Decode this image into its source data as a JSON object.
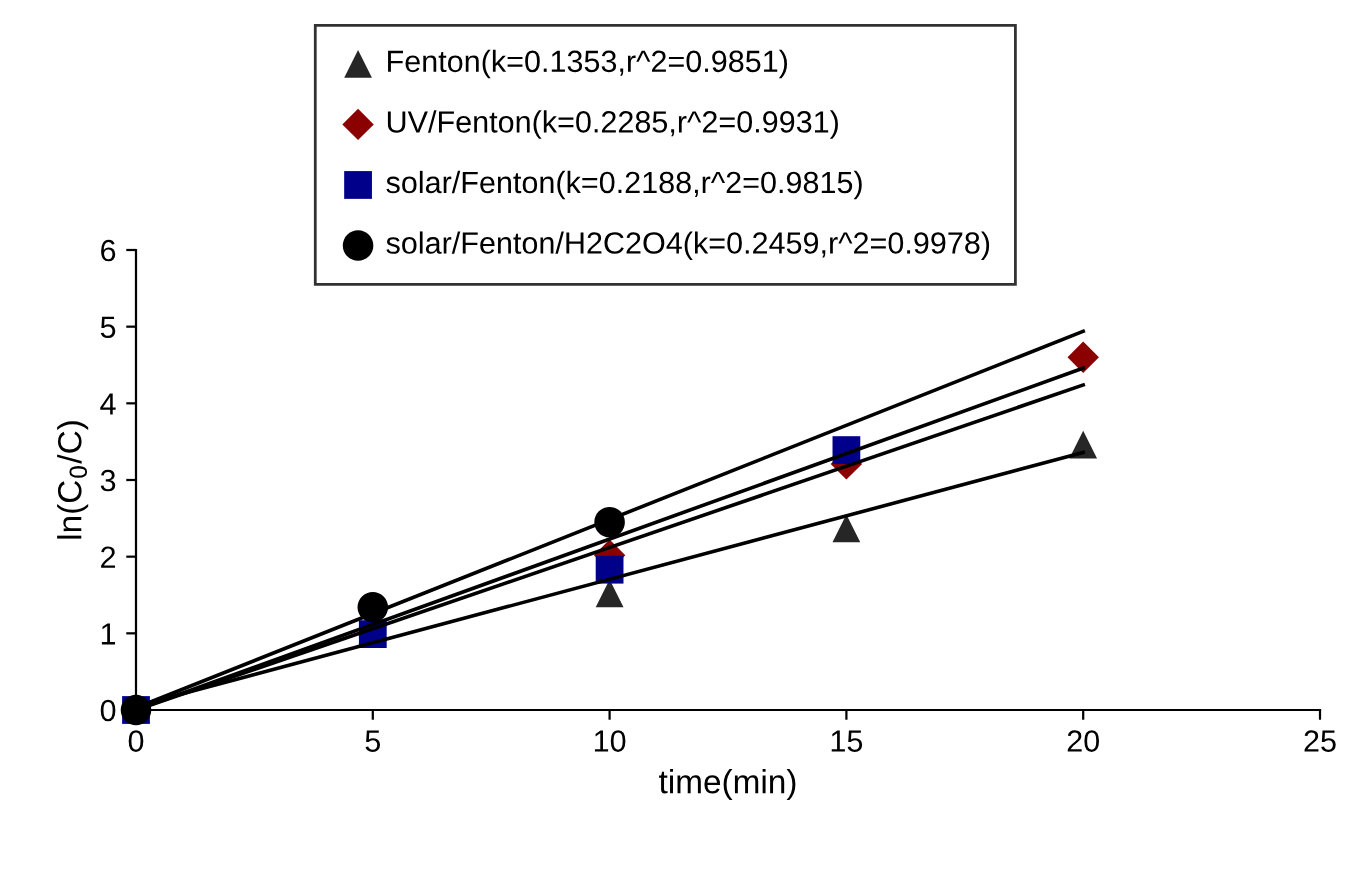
{
  "chart_data": {
    "type": "scatter",
    "xlabel": "time(min)",
    "ylabel": "ln(C$_{0}$/C)",
    "xlim": [
      0,
      25
    ],
    "xticks": [
      0,
      5,
      10,
      15,
      20,
      25
    ],
    "ylim": [
      0,
      6
    ],
    "yticks": [
      0,
      1,
      2,
      3,
      4,
      5,
      6
    ],
    "grid": false,
    "legend": "top",
    "series": [
      {
        "name": "Fenton(k=0.1353,r^2=0.9851)",
        "color": "#262626",
        "marker": "triangle",
        "x": [
          10,
          15,
          20
        ],
        "values": [
          1.52,
          2.37,
          3.46
        ]
      },
      {
        "name": "UV/Fenton(k=0.2285,r^2=0.9931)",
        "color": "#8b0000",
        "marker": "diamond",
        "x": [
          10,
          15,
          20
        ],
        "values": [
          2.02,
          3.21,
          4.6
        ]
      },
      {
        "name": "solar/Fenton(k=0.2188,r^2=0.9815)",
        "color": "#00008b",
        "marker": "square",
        "x": [
          0,
          5,
          10,
          15
        ],
        "values": [
          0,
          0.99,
          1.83,
          3.39
        ]
      },
      {
        "name": "solar/Fenton/H2C2O4(k=0.2459,r^2=0.9978)",
        "color": "#000000",
        "marker": "circle",
        "x": [
          0,
          5,
          10
        ],
        "values": [
          0,
          1.34,
          2.45
        ]
      },
      {
        "type": "line",
        "color": "#000000",
        "marker": "none",
        "x": [
          0,
          20
        ],
        "values": [
          0.05,
          3.36
        ]
      },
      {
        "type": "line",
        "color": "#000000",
        "marker": "none",
        "x": [
          0,
          20
        ],
        "values": [
          0,
          4.24
        ]
      },
      {
        "type": "line",
        "color": "#000000",
        "marker": "none",
        "x": [
          0,
          20
        ],
        "values": [
          0,
          4.46
        ]
      },
      {
        "type": "line",
        "color": "#000000",
        "marker": "none",
        "x": [
          0,
          20
        ],
        "values": [
          0.03,
          4.94
        ]
      }
    ]
  }
}
